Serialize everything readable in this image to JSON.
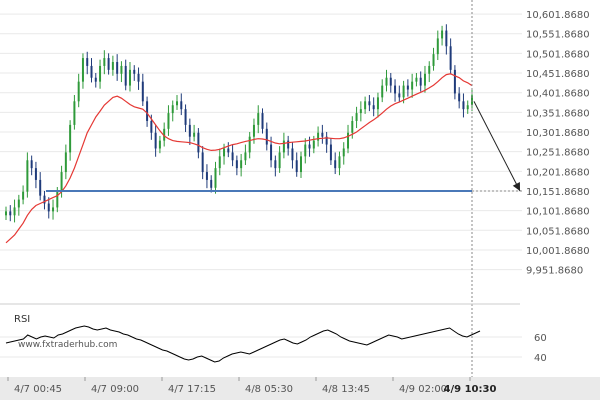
{
  "colors": {
    "background": "#ffffff",
    "grid": "#e9e9e9",
    "bull": "#2f9a3a",
    "bear": "#1f3b7a",
    "ma": "#e53935",
    "support": "#4a78b8",
    "arrow": "#222222",
    "text": "#555555",
    "time_axis_bg": "#eaeaea"
  },
  "watermark": "www.fxtraderhub.com",
  "chart_data": [
    {
      "type": "candlestick",
      "title": "",
      "xlabel": "",
      "ylabel": "",
      "ylim": [
        9900,
        10625
      ],
      "yticks": [
        "10,601.8680",
        "10,551.8680",
        "10,501.8680",
        "10,451.8680",
        "10,401.8680",
        "10,351.8680",
        "10,301.8680",
        "10,251.8680",
        "10,201.8680",
        "10,151.8680",
        "10,101.8680",
        "10,051.8680",
        "10,001.8680",
        "9,951.8680"
      ],
      "xticks": [
        "4/7 00:45",
        "4/7 09:00",
        "4/7 17:15",
        "4/8 05:30",
        "4/8 13:45",
        "4/9 02:00",
        "4/9 10:30"
      ],
      "grid": true,
      "support_level": 10151.868,
      "forecast_arrow_target": 10151.868,
      "closes": [
        10100,
        10090,
        10110,
        10130,
        10150,
        10230,
        10210,
        10180,
        10140,
        10120,
        10100,
        10110,
        10150,
        10200,
        10250,
        10320,
        10380,
        10430,
        10490,
        10470,
        10440,
        10430,
        10470,
        10490,
        10460,
        10480,
        10450,
        10470,
        10420,
        10460,
        10450,
        10430,
        10380,
        10330,
        10300,
        10260,
        10280,
        10310,
        10350,
        10370,
        10380,
        10360,
        10320,
        10290,
        10300,
        10250,
        10200,
        10180,
        10160,
        10210,
        10240,
        10260,
        10250,
        10230,
        10210,
        10230,
        10250,
        10290,
        10320,
        10350,
        10310,
        10270,
        10230,
        10210,
        10250,
        10280,
        10260,
        10230,
        10200,
        10240,
        10270,
        10260,
        10280,
        10300,
        10290,
        10270,
        10230,
        10210,
        10240,
        10260,
        10300,
        10330,
        10350,
        10360,
        10380,
        10370,
        10360,
        10390,
        10420,
        10440,
        10420,
        10400,
        10390,
        10420,
        10410,
        10430,
        10440,
        10420,
        10450,
        10470,
        10500,
        10540,
        10560,
        10520,
        10460,
        10400,
        10380,
        10360,
        10370,
        10395
      ],
      "ma": [
        10020,
        10030,
        10040,
        10055,
        10070,
        10090,
        10105,
        10115,
        10120,
        10125,
        10130,
        10135,
        10140,
        10150,
        10165,
        10185,
        10210,
        10240,
        10270,
        10300,
        10320,
        10340,
        10355,
        10370,
        10380,
        10390,
        10393,
        10388,
        10380,
        10372,
        10366,
        10363,
        10360,
        10350,
        10335,
        10320,
        10305,
        10292,
        10285,
        10280,
        10278,
        10277,
        10276,
        10275,
        10272,
        10268,
        10262,
        10258,
        10255,
        10256,
        10258,
        10262,
        10266,
        10270,
        10272,
        10275,
        10278,
        10280,
        10283,
        10285,
        10284,
        10282,
        10278,
        10274,
        10272,
        10273,
        10275,
        10276,
        10277,
        10278,
        10279,
        10281,
        10283,
        10285,
        10286,
        10287,
        10286,
        10285,
        10285,
        10287,
        10291,
        10296,
        10302,
        10310,
        10318,
        10326,
        10333,
        10341,
        10350,
        10360,
        10368,
        10374,
        10378,
        10383,
        10388,
        10393,
        10398,
        10403,
        10408,
        10414,
        10421,
        10430,
        10440,
        10448,
        10450,
        10445,
        10440,
        10432,
        10427,
        10420
      ]
    },
    {
      "type": "line",
      "title": "RSI",
      "ylim": [
        25,
        85
      ],
      "yticks": [
        "60",
        "40"
      ],
      "values": [
        54,
        55,
        56,
        57,
        58,
        62,
        60,
        58,
        60,
        61,
        60,
        59,
        62,
        63,
        65,
        67,
        69,
        70,
        71,
        70,
        68,
        67,
        68,
        69,
        67,
        66,
        65,
        63,
        62,
        60,
        58,
        57,
        55,
        53,
        51,
        49,
        47,
        46,
        44,
        42,
        40,
        38,
        37,
        38,
        40,
        41,
        39,
        37,
        35,
        36,
        39,
        41,
        43,
        44,
        45,
        44,
        43,
        45,
        47,
        49,
        51,
        53,
        55,
        57,
        58,
        56,
        54,
        53,
        55,
        57,
        60,
        62,
        64,
        66,
        67,
        65,
        63,
        60,
        58,
        56,
        55,
        54,
        53,
        52,
        54,
        56,
        58,
        60,
        62,
        61,
        60,
        58,
        59,
        60,
        61,
        62,
        63,
        64,
        65,
        66,
        67,
        68,
        69,
        66,
        63,
        61,
        60,
        62,
        64,
        66
      ]
    }
  ]
}
